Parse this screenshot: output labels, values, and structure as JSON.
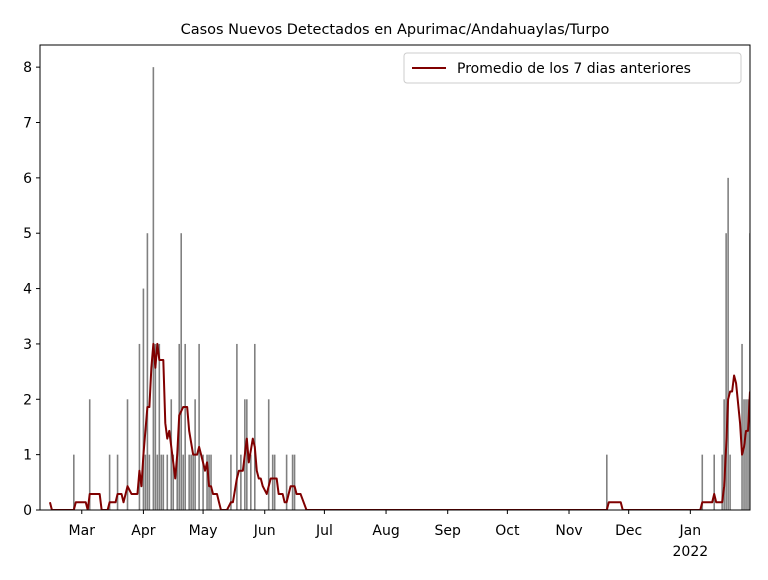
{
  "chart_data": {
    "type": "bar",
    "title": "Casos Nuevos Detectados en Apurimac/Andahuaylas/Turpo",
    "xlim": [
      "2021-02-08",
      "2022-01-31"
    ],
    "ylim": [
      0,
      8.4
    ],
    "yticks": [
      0,
      1,
      2,
      3,
      4,
      5,
      6,
      7,
      8
    ],
    "xticks": [
      {
        "value": "2021-03-01",
        "label": "Mar"
      },
      {
        "value": "2021-04-01",
        "label": "Apr"
      },
      {
        "value": "2021-05-01",
        "label": "May"
      },
      {
        "value": "2021-06-01",
        "label": "Jun"
      },
      {
        "value": "2021-07-01",
        "label": "Jul"
      },
      {
        "value": "2021-08-01",
        "label": "Aug"
      },
      {
        "value": "2021-09-01",
        "label": "Sep"
      },
      {
        "value": "2021-10-01",
        "label": "Oct"
      },
      {
        "value": "2021-11-01",
        "label": "Nov"
      },
      {
        "value": "2021-12-01",
        "label": "Dec"
      },
      {
        "value": "2022-01-01",
        "label": "Jan\n2022"
      }
    ],
    "legend": "upper right",
    "series": [
      {
        "type": "bar",
        "color": "#808080",
        "x": [
          "2021-02-25",
          "2021-03-05",
          "2021-03-15",
          "2021-03-19",
          "2021-03-24",
          "2021-03-30",
          "2021-04-01",
          "2021-04-02",
          "2021-04-03",
          "2021-04-04",
          "2021-04-06",
          "2021-04-07",
          "2021-04-08",
          "2021-04-09",
          "2021-04-10",
          "2021-04-11",
          "2021-04-13",
          "2021-04-15",
          "2021-04-16",
          "2021-04-18",
          "2021-04-19",
          "2021-04-20",
          "2021-04-21",
          "2021-04-22",
          "2021-04-24",
          "2021-04-25",
          "2021-04-26",
          "2021-04-27",
          "2021-04-29",
          "2021-05-01",
          "2021-05-03",
          "2021-05-04",
          "2021-05-05",
          "2021-05-15",
          "2021-05-18",
          "2021-05-20",
          "2021-05-22",
          "2021-05-23",
          "2021-05-25",
          "2021-05-27",
          "2021-06-03",
          "2021-06-05",
          "2021-06-06",
          "2021-06-12",
          "2021-06-15",
          "2021-06-16",
          "2021-11-20",
          "2022-01-07",
          "2022-01-13",
          "2022-01-17",
          "2022-01-18",
          "2022-01-19",
          "2022-01-20",
          "2022-01-21",
          "2022-01-27",
          "2022-01-28",
          "2022-01-29",
          "2022-01-30",
          "2022-01-31"
        ],
        "values": [
          1,
          2,
          1,
          1,
          2,
          3,
          4,
          1,
          5,
          1,
          8,
          3,
          1,
          3,
          1,
          1,
          1,
          2,
          1,
          1,
          3,
          5,
          1,
          3,
          1,
          1,
          1,
          2,
          3,
          1,
          1,
          1,
          1,
          1,
          3,
          1,
          2,
          2,
          1,
          3,
          2,
          1,
          1,
          1,
          1,
          1,
          1,
          1,
          1,
          1,
          2,
          5,
          6,
          1,
          3,
          2,
          2,
          2,
          5
        ]
      },
      {
        "type": "line",
        "name": "Promedio de los 7 dias anteriores",
        "color": "#800000",
        "x": [
          "2021-02-13",
          "2021-02-14",
          "2021-02-25",
          "2021-02-26",
          "2021-03-03",
          "2021-03-04",
          "2021-03-05",
          "2021-03-10",
          "2021-03-11",
          "2021-03-14",
          "2021-03-15",
          "2021-03-18",
          "2021-03-19",
          "2021-03-21",
          "2021-03-22",
          "2021-03-24",
          "2021-03-26",
          "2021-03-29",
          "2021-03-30",
          "2021-03-31",
          "2021-04-01",
          "2021-04-03",
          "2021-04-04",
          "2021-04-05",
          "2021-04-06",
          "2021-04-07",
          "2021-04-08",
          "2021-04-09",
          "2021-04-11",
          "2021-04-12",
          "2021-04-13",
          "2021-04-14",
          "2021-04-17",
          "2021-04-18",
          "2021-04-19",
          "2021-04-21",
          "2021-04-23",
          "2021-04-24",
          "2021-04-26",
          "2021-04-28",
          "2021-04-29",
          "2021-04-30",
          "2021-05-02",
          "2021-05-03",
          "2021-05-04",
          "2021-05-05",
          "2021-05-06",
          "2021-05-08",
          "2021-05-09",
          "2021-05-10",
          "2021-05-13",
          "2021-05-15",
          "2021-05-16",
          "2021-05-18",
          "2021-05-19",
          "2021-05-21",
          "2021-05-22",
          "2021-05-23",
          "2021-05-24",
          "2021-05-26",
          "2021-05-27",
          "2021-05-28",
          "2021-05-29",
          "2021-05-30",
          "2021-05-31",
          "2021-06-02",
          "2021-06-04",
          "2021-06-07",
          "2021-06-08",
          "2021-06-10",
          "2021-06-11",
          "2021-06-12",
          "2021-06-14",
          "2021-06-16",
          "2021-06-17",
          "2021-06-19",
          "2021-06-22",
          "2021-11-20",
          "2021-11-21",
          "2021-11-27",
          "2021-11-28",
          "2022-01-06",
          "2022-01-07",
          "2022-01-12",
          "2022-01-13",
          "2022-01-14",
          "2022-01-17",
          "2022-01-18",
          "2022-01-19",
          "2022-01-20",
          "2022-01-21",
          "2022-01-22",
          "2022-01-23",
          "2022-01-24",
          "2022-01-26",
          "2022-01-27",
          "2022-01-28",
          "2022-01-29",
          "2022-01-30",
          "2022-01-31"
        ],
        "values": [
          0.14,
          0,
          0,
          0.14,
          0.14,
          0,
          0.29,
          0.29,
          0,
          0,
          0.14,
          0.14,
          0.29,
          0.29,
          0.14,
          0.43,
          0.29,
          0.29,
          0.71,
          0.43,
          1.0,
          1.86,
          1.86,
          2.57,
          3.0,
          2.57,
          3.0,
          2.71,
          2.71,
          1.57,
          1.29,
          1.43,
          0.57,
          1.0,
          1.71,
          1.86,
          1.86,
          1.43,
          1.0,
          1.0,
          1.14,
          1.0,
          0.71,
          0.86,
          0.43,
          0.43,
          0.29,
          0.29,
          0.14,
          0,
          0,
          0.14,
          0.14,
          0.57,
          0.71,
          0.71,
          1.0,
          1.29,
          0.86,
          1.29,
          1.14,
          0.71,
          0.57,
          0.57,
          0.43,
          0.29,
          0.57,
          0.57,
          0.29,
          0.29,
          0.14,
          0.14,
          0.43,
          0.43,
          0.29,
          0.29,
          0,
          0,
          0.14,
          0.14,
          0,
          0,
          0.14,
          0.14,
          0.29,
          0.14,
          0.14,
          0.43,
          1.14,
          2.0,
          2.14,
          2.14,
          2.43,
          2.29,
          1.57,
          1.0,
          1.14,
          1.43,
          1.43,
          2.14
        ]
      }
    ]
  }
}
